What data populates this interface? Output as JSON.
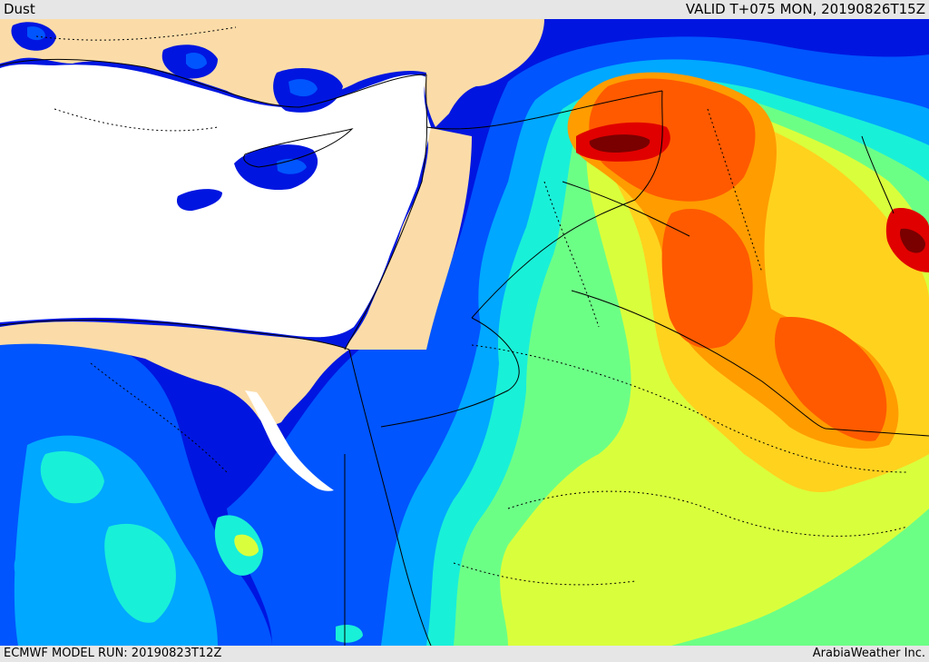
{
  "header": {
    "title": "Dust",
    "valid_label": "VALID T+075 MON, 20190826T15Z"
  },
  "footer": {
    "model_run": "ECMWF MODEL RUN: 20190823T12Z",
    "credit": "ArabiaWeather Inc."
  },
  "map": {
    "field": "Dust",
    "colors": {
      "land": "#fbdca8",
      "sea": "#ffffff",
      "level_1": "#0a00a0",
      "level_2": "#0016e0",
      "level_3": "#0055ff",
      "level_4": "#00a8ff",
      "level_5": "#19f0d8",
      "level_6": "#6cff86",
      "level_7": "#d9ff3c",
      "level_8": "#ffd21e",
      "level_9": "#ff9c00",
      "level_10": "#ff5a00",
      "level_11": "#e00000",
      "level_12": "#7a0000"
    }
  }
}
